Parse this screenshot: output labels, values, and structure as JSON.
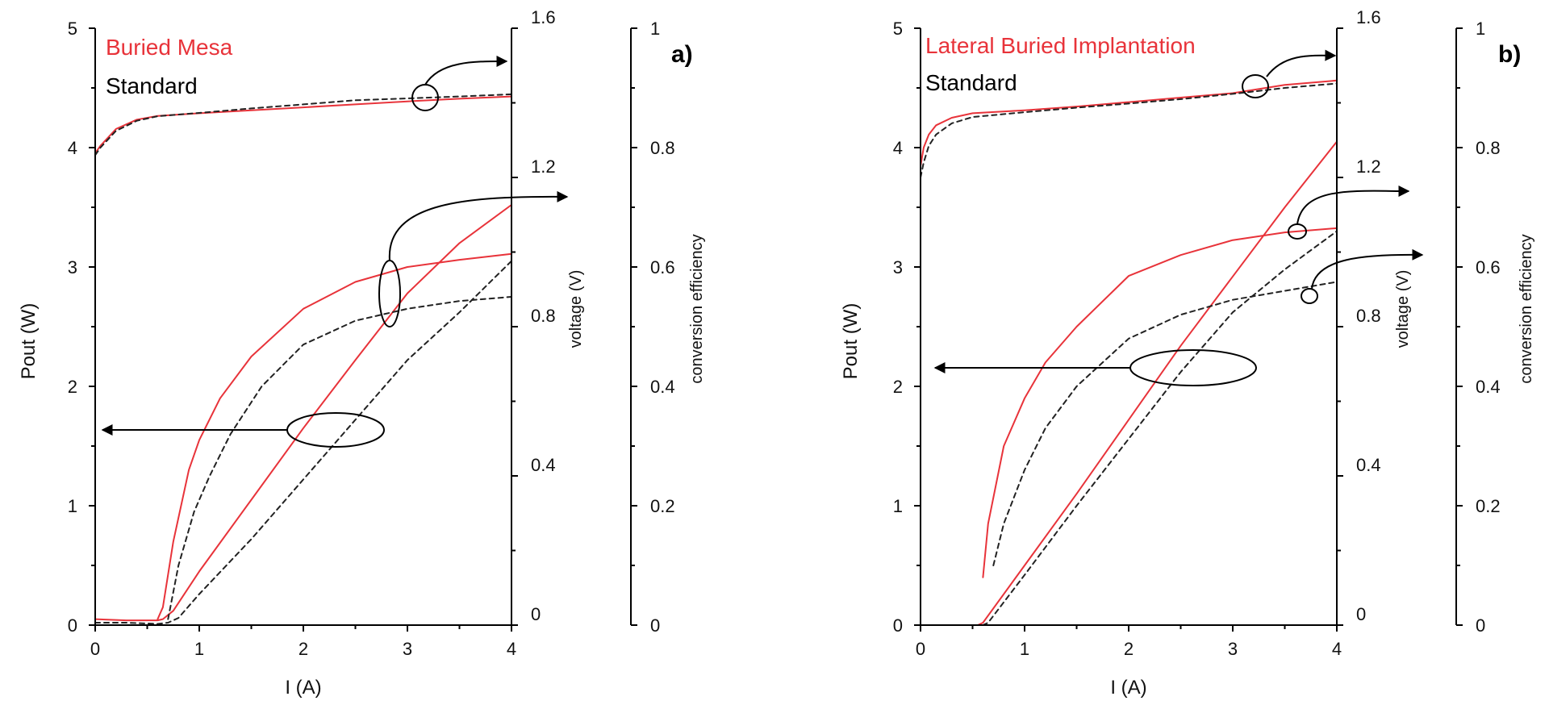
{
  "colors": {
    "red": "#e8333a",
    "black": "#222222"
  },
  "chart_data": [
    {
      "type": "line",
      "panel_label": "a)",
      "legend": [
        {
          "label": "Buried Mesa",
          "color": "#e8333a"
        },
        {
          "label": "Standard",
          "color": "#000000"
        }
      ],
      "xlabel": "I (A)",
      "ylabel_left": "Pout (W)",
      "ylabel_right1": "voltage (V)",
      "ylabel_right2": "conversion efficiency",
      "x_ticks": [
        "0",
        "1",
        "2",
        "3",
        "4"
      ],
      "y_left_ticks": [
        "0",
        "1",
        "2",
        "3",
        "4",
        "5"
      ],
      "y_right1_ticks": [
        "0",
        "0.4",
        "0.8",
        "1.2",
        "1.6"
      ],
      "y_right2_ticks": [
        "0",
        "0.2",
        "0.4",
        "0.6",
        "0.8",
        "1"
      ],
      "xlim": [
        0,
        4
      ],
      "ylim_left": [
        0,
        5
      ],
      "ylim_right1": [
        0,
        1.6
      ],
      "ylim_right2": [
        0,
        1
      ],
      "series": [
        {
          "quantity": "Pout",
          "axis": "left",
          "style": "solid",
          "color": "#e8333a",
          "x": [
            0,
            0.3,
            0.6,
            0.65,
            0.75,
            1,
            1.5,
            2,
            2.5,
            3,
            3.5,
            4
          ],
          "y": [
            0.05,
            0.04,
            0.04,
            0.05,
            0.12,
            0.45,
            1.05,
            1.65,
            2.22,
            2.78,
            3.2,
            3.52
          ]
        },
        {
          "quantity": "Pout",
          "axis": "left",
          "style": "dashed",
          "color": "#222222",
          "x": [
            0,
            0.3,
            0.6,
            0.7,
            0.8,
            1,
            1.5,
            2,
            2.5,
            3,
            3.5,
            4
          ],
          "y": [
            0.02,
            0.02,
            0.01,
            0.02,
            0.06,
            0.26,
            0.72,
            1.22,
            1.72,
            2.22,
            2.62,
            3.05
          ]
        },
        {
          "quantity": "voltage",
          "axis": "right1",
          "style": "solid",
          "color": "#e8333a",
          "x": [
            0,
            0.05,
            0.1,
            0.2,
            0.4,
            0.6,
            1,
            1.5,
            2,
            2.5,
            3,
            3.5,
            4
          ],
          "y": [
            1.265,
            1.285,
            1.3,
            1.33,
            1.355,
            1.365,
            1.372,
            1.38,
            1.388,
            1.396,
            1.404,
            1.411,
            1.417
          ]
        },
        {
          "quantity": "voltage",
          "axis": "right1",
          "style": "dashed",
          "color": "#222222",
          "x": [
            0,
            0.05,
            0.1,
            0.2,
            0.4,
            0.6,
            1,
            1.5,
            2,
            2.5,
            3,
            3.5,
            4
          ],
          "y": [
            1.26,
            1.28,
            1.295,
            1.325,
            1.352,
            1.364,
            1.373,
            1.385,
            1.396,
            1.407,
            1.412,
            1.417,
            1.423
          ]
        },
        {
          "quantity": "conversion efficiency",
          "axis": "right2",
          "style": "solid",
          "color": "#e8333a",
          "x": [
            0.6,
            0.65,
            0.75,
            0.9,
            1,
            1.2,
            1.5,
            2,
            2.5,
            3,
            3.5,
            4
          ],
          "y": [
            0.01,
            0.03,
            0.14,
            0.26,
            0.31,
            0.38,
            0.45,
            0.53,
            0.575,
            0.6,
            0.612,
            0.622
          ]
        },
        {
          "quantity": "conversion efficiency",
          "axis": "right2",
          "style": "dashed",
          "color": "#222222",
          "x": [
            0.7,
            0.8,
            0.95,
            1.1,
            1.3,
            1.6,
            2,
            2.5,
            3,
            3.5,
            4
          ],
          "y": [
            0.01,
            0.1,
            0.19,
            0.25,
            0.32,
            0.4,
            0.47,
            0.51,
            0.53,
            0.543,
            0.55
          ]
        }
      ]
    },
    {
      "type": "line",
      "panel_label": "b)",
      "legend": [
        {
          "label": "Lateral Buried Implantation",
          "color": "#e8333a"
        },
        {
          "label": "Standard",
          "color": "#000000"
        }
      ],
      "xlabel": "I (A)",
      "ylabel_left": "Pout (W)",
      "ylabel_right1": "voltage (V)",
      "ylabel_right2": "conversion efficiency",
      "x_ticks": [
        "0",
        "1",
        "2",
        "3",
        "4"
      ],
      "y_left_ticks": [
        "0",
        "1",
        "2",
        "3",
        "4",
        "5"
      ],
      "y_right1_ticks": [
        "0",
        "0.4",
        "0.8",
        "1.2",
        "1.6"
      ],
      "y_right2_ticks": [
        "0",
        "0.2",
        "0.4",
        "0.6",
        "0.8",
        "1"
      ],
      "xlim": [
        0,
        4
      ],
      "ylim_left": [
        0,
        5
      ],
      "ylim_right1": [
        0,
        1.6
      ],
      "ylim_right2": [
        0,
        1
      ],
      "series": [
        {
          "quantity": "Pout",
          "axis": "left",
          "style": "solid",
          "color": "#e8333a",
          "x": [
            0,
            0.3,
            0.55,
            0.6,
            1,
            1.5,
            2,
            2.5,
            3,
            3.5,
            4
          ],
          "y": [
            0,
            0,
            0,
            0.02,
            0.5,
            1.1,
            1.72,
            2.34,
            2.92,
            3.5,
            4.05
          ]
        },
        {
          "quantity": "Pout",
          "axis": "left",
          "style": "dashed",
          "color": "#222222",
          "x": [
            0,
            0.3,
            0.6,
            0.65,
            1,
            1.5,
            2,
            2.5,
            3,
            3.5,
            4
          ],
          "y": [
            0,
            0,
            0,
            0.02,
            0.42,
            1.0,
            1.56,
            2.12,
            2.62,
            2.98,
            3.3
          ]
        },
        {
          "quantity": "voltage",
          "axis": "right1",
          "style": "solid",
          "color": "#e8333a",
          "x": [
            0,
            0.03,
            0.08,
            0.15,
            0.3,
            0.5,
            1,
            1.5,
            2,
            2.5,
            3,
            3.5,
            4
          ],
          "y": [
            1.23,
            1.28,
            1.315,
            1.34,
            1.36,
            1.372,
            1.38,
            1.39,
            1.402,
            1.414,
            1.426,
            1.448,
            1.46
          ]
        },
        {
          "quantity": "voltage",
          "axis": "right1",
          "style": "dashed",
          "color": "#222222",
          "x": [
            0,
            0.03,
            0.08,
            0.15,
            0.3,
            0.5,
            1,
            1.5,
            2,
            2.5,
            3,
            3.5,
            4
          ],
          "y": [
            1.2,
            1.24,
            1.285,
            1.315,
            1.345,
            1.362,
            1.375,
            1.387,
            1.398,
            1.41,
            1.424,
            1.44,
            1.452
          ]
        },
        {
          "quantity": "conversion efficiency",
          "axis": "right2",
          "style": "solid",
          "color": "#e8333a",
          "x": [
            0.6,
            0.65,
            0.8,
            1,
            1.2,
            1.5,
            2,
            2.5,
            3,
            3.5,
            4
          ],
          "y": [
            0.08,
            0.17,
            0.3,
            0.38,
            0.44,
            0.5,
            0.585,
            0.62,
            0.645,
            0.658,
            0.665
          ]
        },
        {
          "quantity": "conversion efficiency",
          "axis": "right2",
          "style": "dashed",
          "color": "#222222",
          "x": [
            0.7,
            0.8,
            1,
            1.2,
            1.5,
            2,
            2.5,
            3,
            3.5,
            4
          ],
          "y": [
            0.1,
            0.17,
            0.26,
            0.33,
            0.4,
            0.48,
            0.52,
            0.545,
            0.56,
            0.575
          ]
        }
      ]
    }
  ]
}
